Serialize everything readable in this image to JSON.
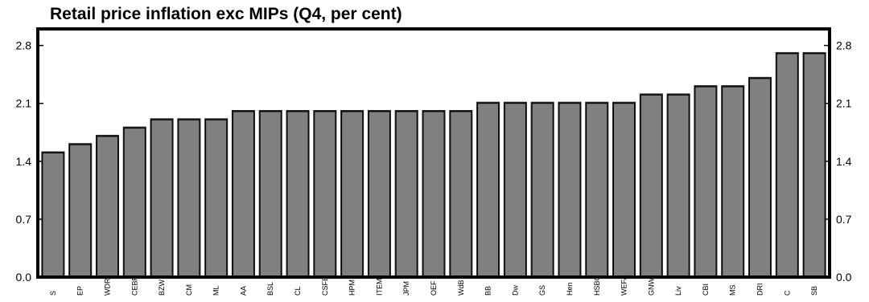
{
  "chart_data": {
    "type": "bar",
    "title": "Retail price inflation exc MIPs (Q4, per cent)",
    "xlabel": "",
    "ylabel": "",
    "ylim": [
      0,
      3.0
    ],
    "yticks": [
      "0.0",
      "0.7",
      "1.4",
      "2.1",
      "2.8"
    ],
    "ytick_values": [
      0,
      0.7,
      1.4,
      2.1,
      2.8
    ],
    "grid": false,
    "bar_color": "#808080",
    "categories": [
      "S",
      "EP",
      "WDR",
      "CEBR",
      "BZW",
      "CM",
      "ML",
      "AA",
      "BSL",
      "CL",
      "CSFB",
      "HPM",
      "ITEM",
      "JPM",
      "OEF",
      "WdB",
      "BB",
      "Dw",
      "GS",
      "Hen",
      "HSBC",
      "WEFA",
      "GNW",
      "Liv",
      "CBI",
      "MS",
      "DRI",
      "C",
      "SB"
    ],
    "values": [
      1.5,
      1.6,
      1.7,
      1.8,
      1.9,
      1.9,
      1.9,
      2.0,
      2.0,
      2.0,
      2.0,
      2.0,
      2.0,
      2.0,
      2.0,
      2.0,
      2.1,
      2.1,
      2.1,
      2.1,
      2.1,
      2.1,
      2.2,
      2.2,
      2.3,
      2.3,
      2.4,
      2.7,
      2.7
    ]
  }
}
